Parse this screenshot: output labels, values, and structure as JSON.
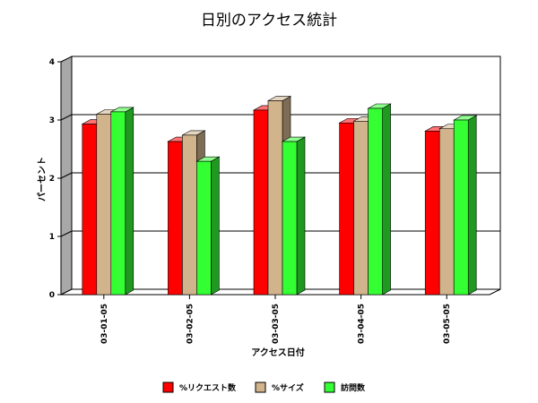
{
  "chart_data": {
    "type": "bar",
    "title": "日別のアクセス統計",
    "xlabel": "アクセス日付",
    "ylabel": "パーセント",
    "ylim": [
      0,
      4
    ],
    "yticks": [
      "0",
      "1",
      "2",
      "3",
      "4"
    ],
    "grid": true,
    "legend_position": "bottom",
    "categories": [
      "03-01-05",
      "03-02-05",
      "03-03-05",
      "03-04-05",
      "03-05-05"
    ],
    "series": [
      {
        "name": "%リクエスト数",
        "color": "#ff0000",
        "values": [
          2.93,
          2.63,
          3.17,
          2.95,
          2.81
        ]
      },
      {
        "name": "%サイズ",
        "color": "#d2b48c",
        "values": [
          3.1,
          2.74,
          3.33,
          2.98,
          2.85
        ]
      },
      {
        "name": "訪問数",
        "color": "#33ff33",
        "values": [
          3.14,
          2.29,
          2.63,
          3.2,
          3.0
        ]
      }
    ]
  }
}
